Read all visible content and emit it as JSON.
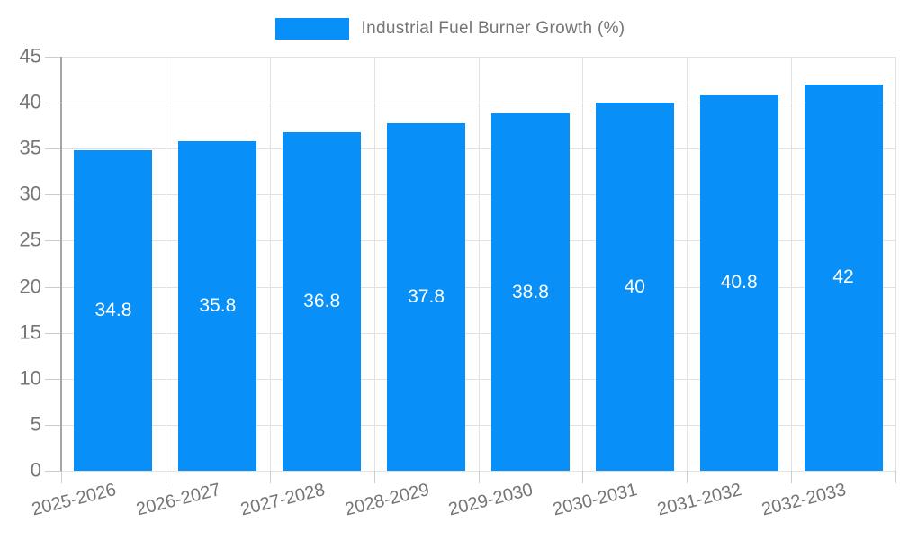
{
  "legend": {
    "label": "Industrial Fuel Burner Growth (%)"
  },
  "chart_data": {
    "type": "bar",
    "title": "Industrial Fuel Burner Growth (%)",
    "categories": [
      "2025-2026",
      "2026-2027",
      "2027-2028",
      "2028-2029",
      "2029-2030",
      "2030-2031",
      "2031-2032",
      "2032-2033"
    ],
    "values": [
      34.8,
      35.8,
      36.8,
      37.8,
      38.8,
      40,
      40.8,
      42
    ],
    "bar_labels": [
      "34.8",
      "35.8",
      "36.8",
      "37.8",
      "38.8",
      "40",
      "40.8",
      "42"
    ],
    "xlabel": "",
    "ylabel": "",
    "ylim": [
      0,
      45
    ],
    "yticks": [
      0,
      5,
      10,
      15,
      20,
      25,
      30,
      35,
      40,
      45
    ],
    "grid": true,
    "legend_position": "top-center",
    "colors": {
      "bar": "#0890f8",
      "grid": "#e2e2e2",
      "axis": "#a6a6a6",
      "tick": "#cccccc",
      "tick_text": "#757575",
      "bar_label_text": "#ffffff",
      "background": "#ffffff"
    }
  }
}
